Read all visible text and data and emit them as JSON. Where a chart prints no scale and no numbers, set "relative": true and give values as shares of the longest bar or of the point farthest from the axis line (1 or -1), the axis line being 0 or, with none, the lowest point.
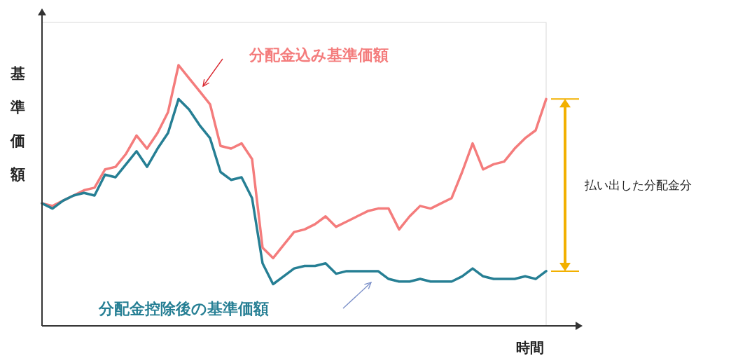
{
  "chart_data": {
    "type": "line",
    "relative": true,
    "xlabel": "時間",
    "ylabel": "基準価額",
    "categories": [
      null,
      null,
      null,
      null,
      null,
      null,
      null,
      null,
      null,
      null,
      null,
      null,
      null,
      null,
      null,
      null,
      null,
      null,
      null,
      null,
      null,
      null,
      null,
      null,
      null,
      null,
      null,
      null,
      null,
      null,
      null,
      null,
      null,
      null,
      null,
      null,
      null,
      null,
      null,
      null,
      null,
      null,
      null,
      null,
      null,
      null,
      null,
      null,
      null
    ],
    "series": [
      {
        "name": "分配金込み基準価額",
        "color": "#f47c7c",
        "values": [
          0.47,
          0.46,
          0.48,
          0.5,
          0.52,
          0.53,
          0.6,
          0.61,
          0.66,
          0.73,
          0.68,
          0.74,
          0.82,
          1,
          0.95,
          0.9,
          0.85,
          0.69,
          0.68,
          0.7,
          0.64,
          0.3,
          0.26,
          0.31,
          0.36,
          0.37,
          0.39,
          0.42,
          0.38,
          0.4,
          0.42,
          0.44,
          0.45,
          0.45,
          0.37,
          0.42,
          0.46,
          0.45,
          0.47,
          0.49,
          0.59,
          0.7,
          0.6,
          0.62,
          0.63,
          0.68,
          0.72,
          0.75,
          0.87
        ]
      },
      {
        "name": "分配金控除後の基準価額",
        "color": "#267f94",
        "values": [
          0.47,
          0.45,
          0.48,
          0.5,
          0.51,
          0.5,
          0.58,
          0.57,
          0.62,
          0.67,
          0.61,
          0.68,
          0.74,
          0.87,
          0.83,
          0.77,
          0.72,
          0.59,
          0.56,
          0.57,
          0.49,
          0.24,
          0.16,
          0.19,
          0.22,
          0.23,
          0.23,
          0.24,
          0.2,
          0.21,
          0.21,
          0.21,
          0.21,
          0.18,
          0.17,
          0.17,
          0.18,
          0.17,
          0.17,
          0.17,
          0.19,
          0.22,
          0.19,
          0.18,
          0.18,
          0.18,
          0.19,
          0.18,
          0.21
        ]
      }
    ],
    "annotations": [
      "払い出した分配金分"
    ]
  }
}
